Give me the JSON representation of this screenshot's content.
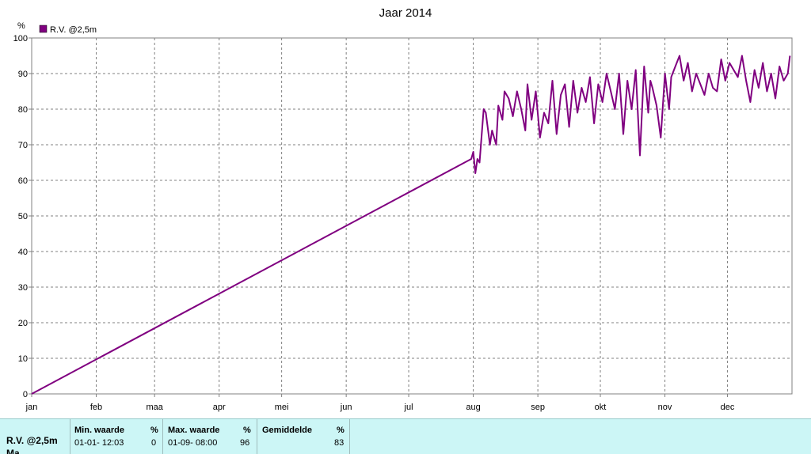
{
  "chart_data": {
    "type": "line",
    "title": "Jaar 2014",
    "ylabel": "%",
    "ylim": [
      0,
      100
    ],
    "yticks": [
      "0",
      "10",
      "20",
      "30",
      "40",
      "50",
      "60",
      "70",
      "80",
      "90",
      "100"
    ],
    "months": [
      "jan",
      "feb",
      "maa",
      "apr",
      "mei",
      "jun",
      "jul",
      "aug",
      "sep",
      "okt",
      "nov",
      "dec"
    ],
    "grid": true,
    "legend_position": "top-left",
    "series": [
      {
        "name": "R.V. @2,5m",
        "color": "#800080",
        "x": [
          "2014-01-01",
          "2014-07-31",
          "2014-08-01",
          "2014-08-02",
          "2014-08-03",
          "2014-08-04",
          "2014-08-06",
          "2014-08-07",
          "2014-08-09",
          "2014-08-10",
          "2014-08-12",
          "2014-08-13",
          "2014-08-15",
          "2014-08-16",
          "2014-08-18",
          "2014-08-20",
          "2014-08-22",
          "2014-08-24",
          "2014-08-26",
          "2014-08-27",
          "2014-08-29",
          "2014-08-31",
          "2014-09-02",
          "2014-09-04",
          "2014-09-06",
          "2014-09-08",
          "2014-09-10",
          "2014-09-12",
          "2014-09-14",
          "2014-09-16",
          "2014-09-18",
          "2014-09-20",
          "2014-09-22",
          "2014-09-24",
          "2014-09-26",
          "2014-09-28",
          "2014-09-30",
          "2014-10-02",
          "2014-10-04",
          "2014-10-06",
          "2014-10-08",
          "2014-10-10",
          "2014-10-12",
          "2014-10-14",
          "2014-10-16",
          "2014-10-18",
          "2014-10-20",
          "2014-10-22",
          "2014-10-24",
          "2014-10-25",
          "2014-10-26",
          "2014-10-28",
          "2014-10-30",
          "2014-11-01",
          "2014-11-03",
          "2014-11-04",
          "2014-11-06",
          "2014-11-08",
          "2014-11-10",
          "2014-11-12",
          "2014-11-14",
          "2014-11-16",
          "2014-11-18",
          "2014-11-20",
          "2014-11-22",
          "2014-11-24",
          "2014-11-26",
          "2014-11-28",
          "2014-11-30",
          "2014-12-02",
          "2014-12-04",
          "2014-12-06",
          "2014-12-08",
          "2014-12-10",
          "2014-12-12",
          "2014-12-14",
          "2014-12-16",
          "2014-12-18",
          "2014-12-20",
          "2014-12-22",
          "2014-12-24",
          "2014-12-26",
          "2014-12-28",
          "2014-12-30",
          "2014-12-31"
        ],
        "y": [
          0,
          66,
          68,
          62,
          66,
          65,
          80,
          79,
          70,
          74,
          70,
          81,
          77,
          85,
          83,
          78,
          85,
          80,
          74,
          87,
          77,
          85,
          72,
          79,
          76,
          88,
          73,
          84,
          87,
          75,
          88,
          79,
          86,
          82,
          89,
          76,
          87,
          82,
          90,
          85,
          80,
          90,
          73,
          88,
          80,
          91,
          67,
          92,
          79,
          88,
          86,
          81,
          72,
          90,
          80,
          89,
          92,
          95,
          88,
          93,
          85,
          90,
          87,
          84,
          90,
          86,
          85,
          94,
          88,
          93,
          91,
          89,
          95,
          88,
          82,
          91,
          86,
          93,
          85,
          90,
          83,
          92,
          88,
          90,
          95
        ],
        "y_note_unused": null
      }
    ]
  },
  "stats": {
    "name": "R.V. @2,5m",
    "name2": "Ma",
    "min_label": "Min. waarde",
    "min_unit": "%",
    "min_time": "01-01- 12:03",
    "min_value": "0",
    "max_label": "Max. waarde",
    "max_unit": "%",
    "max_time": "01-09- 08:00",
    "max_value": "96",
    "avg_label": "Gemiddelde",
    "avg_unit": "%",
    "avg_value": "83"
  }
}
